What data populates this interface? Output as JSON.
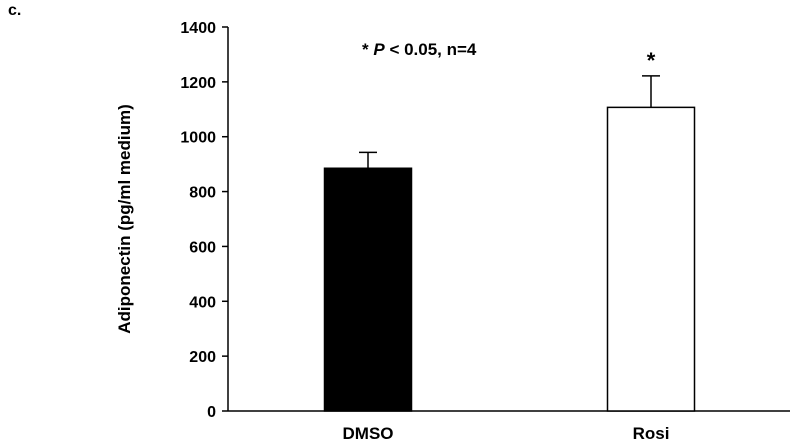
{
  "panel_label": "c.",
  "colors": {
    "axis": "#000000",
    "DMSO": "#000000",
    "Rosi": "#ffffff",
    "bar_outline": "#000000"
  },
  "annotation": {
    "star": "*",
    "p": "P",
    "rest": "< 0.05, n=4"
  },
  "chart_data": {
    "type": "bar",
    "title": "",
    "xlabel": "",
    "ylabel": "Adiponectin (pg/ml medium)",
    "categories": [
      "DMSO",
      "Rosi"
    ],
    "values": [
      885,
      1107
    ],
    "errors": [
      58,
      115
    ],
    "significance": [
      "",
      "*"
    ],
    "ylim": [
      0,
      1400
    ],
    "yticks": [
      0,
      200,
      400,
      600,
      800,
      1000,
      1200,
      1400
    ],
    "grid": false
  }
}
